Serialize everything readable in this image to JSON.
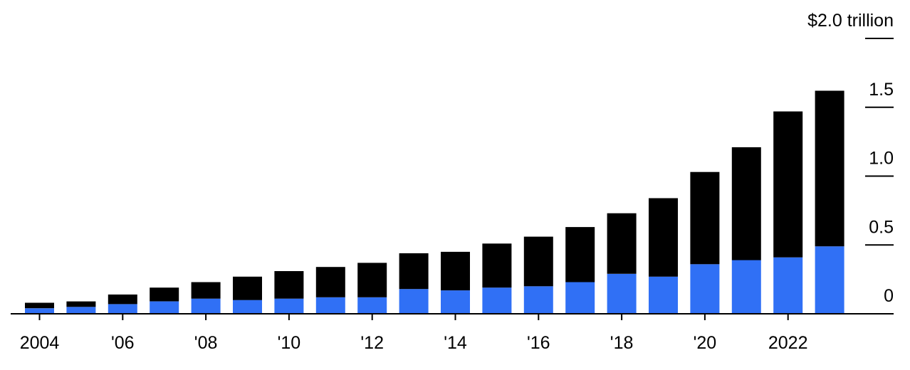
{
  "chart_data": {
    "type": "bar",
    "stacked": true,
    "x": [
      2004,
      2005,
      2006,
      2007,
      2008,
      2009,
      2010,
      2011,
      2012,
      2013,
      2014,
      2015,
      2016,
      2017,
      2018,
      2019,
      2020,
      2021,
      2022,
      2023
    ],
    "x_tick_labels": [
      {
        "year": 2004,
        "label": "2004"
      },
      {
        "year": 2006,
        "label": "'06"
      },
      {
        "year": 2008,
        "label": "'08"
      },
      {
        "year": 2010,
        "label": "'10"
      },
      {
        "year": 2012,
        "label": "'12"
      },
      {
        "year": 2014,
        "label": "'14"
      },
      {
        "year": 2016,
        "label": "'16"
      },
      {
        "year": 2018,
        "label": "'18"
      },
      {
        "year": 2020,
        "label": "'20"
      },
      {
        "year": 2022,
        "label": "2022"
      }
    ],
    "series": [
      {
        "color": "#3070f5",
        "values": [
          0.04,
          0.05,
          0.07,
          0.09,
          0.11,
          0.1,
          0.11,
          0.12,
          0.12,
          0.18,
          0.17,
          0.19,
          0.2,
          0.23,
          0.29,
          0.27,
          0.36,
          0.39,
          0.41,
          0.49
        ]
      },
      {
        "color": "#000000",
        "values": [
          0.04,
          0.04,
          0.07,
          0.1,
          0.12,
          0.17,
          0.2,
          0.22,
          0.25,
          0.26,
          0.28,
          0.32,
          0.36,
          0.4,
          0.44,
          0.57,
          0.67,
          0.82,
          1.06,
          1.13
        ]
      }
    ],
    "y_ticks": [
      {
        "value": 0,
        "label": "0"
      },
      {
        "value": 0.5,
        "label": "0.5"
      },
      {
        "value": 1.0,
        "label": "1.0"
      },
      {
        "value": 1.5,
        "label": "1.5"
      },
      {
        "value": 2.0,
        "label": "$2.0 trillion"
      }
    ],
    "ylim": [
      0,
      2.0
    ],
    "y_axis_position": "right",
    "grid": false,
    "legend": false
  }
}
